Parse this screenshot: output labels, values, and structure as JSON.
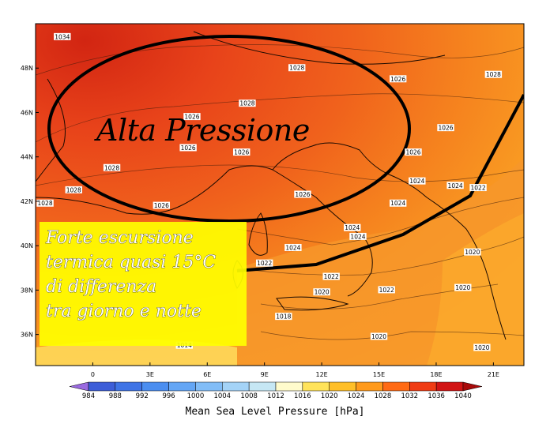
{
  "headline": "Alta Pressione",
  "callout": {
    "lines": [
      "Forte escursione",
      "termica quasi 15°C",
      "di differenza",
      "tra giorno e notte"
    ]
  },
  "axes": {
    "lat_labels": [
      {
        "text": "48N",
        "lat": 48
      },
      {
        "text": "46N",
        "lat": 46
      },
      {
        "text": "44N",
        "lat": 44
      },
      {
        "text": "42N",
        "lat": 42
      },
      {
        "text": "40N",
        "lat": 40
      },
      {
        "text": "38N",
        "lat": 38
      },
      {
        "text": "36N",
        "lat": 36
      }
    ],
    "lon_labels": [
      {
        "text": "0",
        "lon": 0
      },
      {
        "text": "3E",
        "lon": 3
      },
      {
        "text": "6E",
        "lon": 6
      },
      {
        "text": "9E",
        "lon": 9
      },
      {
        "text": "12E",
        "lon": 12
      },
      {
        "text": "15E",
        "lon": 15
      },
      {
        "text": "18E",
        "lon": 18
      },
      {
        "text": "21E",
        "lon": 21
      }
    ],
    "lon_range": [
      -3,
      22.6
    ],
    "lat_range": [
      34.6,
      50
    ]
  },
  "isobar_labels": [
    {
      "text": "1034",
      "lon": -1.6,
      "lat": 49.4
    },
    {
      "text": "1028",
      "lon": 10.7,
      "lat": 48.0
    },
    {
      "text": "1026",
      "lon": 16.0,
      "lat": 47.5
    },
    {
      "text": "1028",
      "lon": 21.0,
      "lat": 47.7
    },
    {
      "text": "1028",
      "lon": 8.1,
      "lat": 46.4
    },
    {
      "text": "1026",
      "lon": 5.2,
      "lat": 45.8
    },
    {
      "text": "1026",
      "lon": 18.5,
      "lat": 45.3
    },
    {
      "text": "1026",
      "lon": 5.0,
      "lat": 44.4
    },
    {
      "text": "1026",
      "lon": 7.8,
      "lat": 44.2
    },
    {
      "text": "1028",
      "lon": 1.0,
      "lat": 43.5
    },
    {
      "text": "1026",
      "lon": 16.8,
      "lat": 44.2
    },
    {
      "text": "1028",
      "lon": -1.0,
      "lat": 42.5
    },
    {
      "text": "1028",
      "lon": -2.5,
      "lat": 41.9
    },
    {
      "text": "1026",
      "lon": 3.6,
      "lat": 41.8
    },
    {
      "text": "1026",
      "lon": 11.0,
      "lat": 42.3
    },
    {
      "text": "1024",
      "lon": 17.0,
      "lat": 42.9
    },
    {
      "text": "1024",
      "lon": 19.0,
      "lat": 42.7
    },
    {
      "text": "1022",
      "lon": 20.2,
      "lat": 42.6
    },
    {
      "text": "1024",
      "lon": 16.0,
      "lat": 41.9
    },
    {
      "text": "1024",
      "lon": 13.6,
      "lat": 40.8
    },
    {
      "text": "1024",
      "lon": 13.9,
      "lat": 40.4
    },
    {
      "text": "1024",
      "lon": 10.5,
      "lat": 39.9
    },
    {
      "text": "1022",
      "lon": 9.0,
      "lat": 39.2
    },
    {
      "text": "1022",
      "lon": 12.5,
      "lat": 38.6
    },
    {
      "text": "1020",
      "lon": 12.0,
      "lat": 37.9
    },
    {
      "text": "1022",
      "lon": 15.4,
      "lat": 38.0
    },
    {
      "text": "1020",
      "lon": 19.9,
      "lat": 39.7
    },
    {
      "text": "1020",
      "lon": 19.4,
      "lat": 38.1
    },
    {
      "text": "1018",
      "lon": 10.0,
      "lat": 36.8
    },
    {
      "text": "1020",
      "lon": 15.0,
      "lat": 35.9
    },
    {
      "text": "1020",
      "lon": 20.4,
      "lat": 35.4
    },
    {
      "text": "1014",
      "lon": 4.8,
      "lat": 35.5
    }
  ],
  "colorbar": {
    "title": "Mean Sea Level Pressure [hPa]",
    "ticks": [
      "984",
      "988",
      "992",
      "996",
      "1000",
      "1004",
      "1008",
      "1012",
      "1016",
      "1020",
      "1024",
      "1028",
      "1032",
      "1036",
      "1040"
    ],
    "colors": [
      "#9a6ae0",
      "#3d5ed8",
      "#3f74e6",
      "#4b8ef0",
      "#64a6f5",
      "#82bdf7",
      "#a4d3f7",
      "#c6e7f4",
      "#fffbcc",
      "#ffe35a",
      "#ffbf28",
      "#ff9a1c",
      "#ff6a14",
      "#f03c14",
      "#d21414",
      "#a80a0a"
    ]
  },
  "colors": {
    "annotation_bg": "#ffff00",
    "headline_ellipse": "#000000",
    "front_line": "#000000"
  }
}
